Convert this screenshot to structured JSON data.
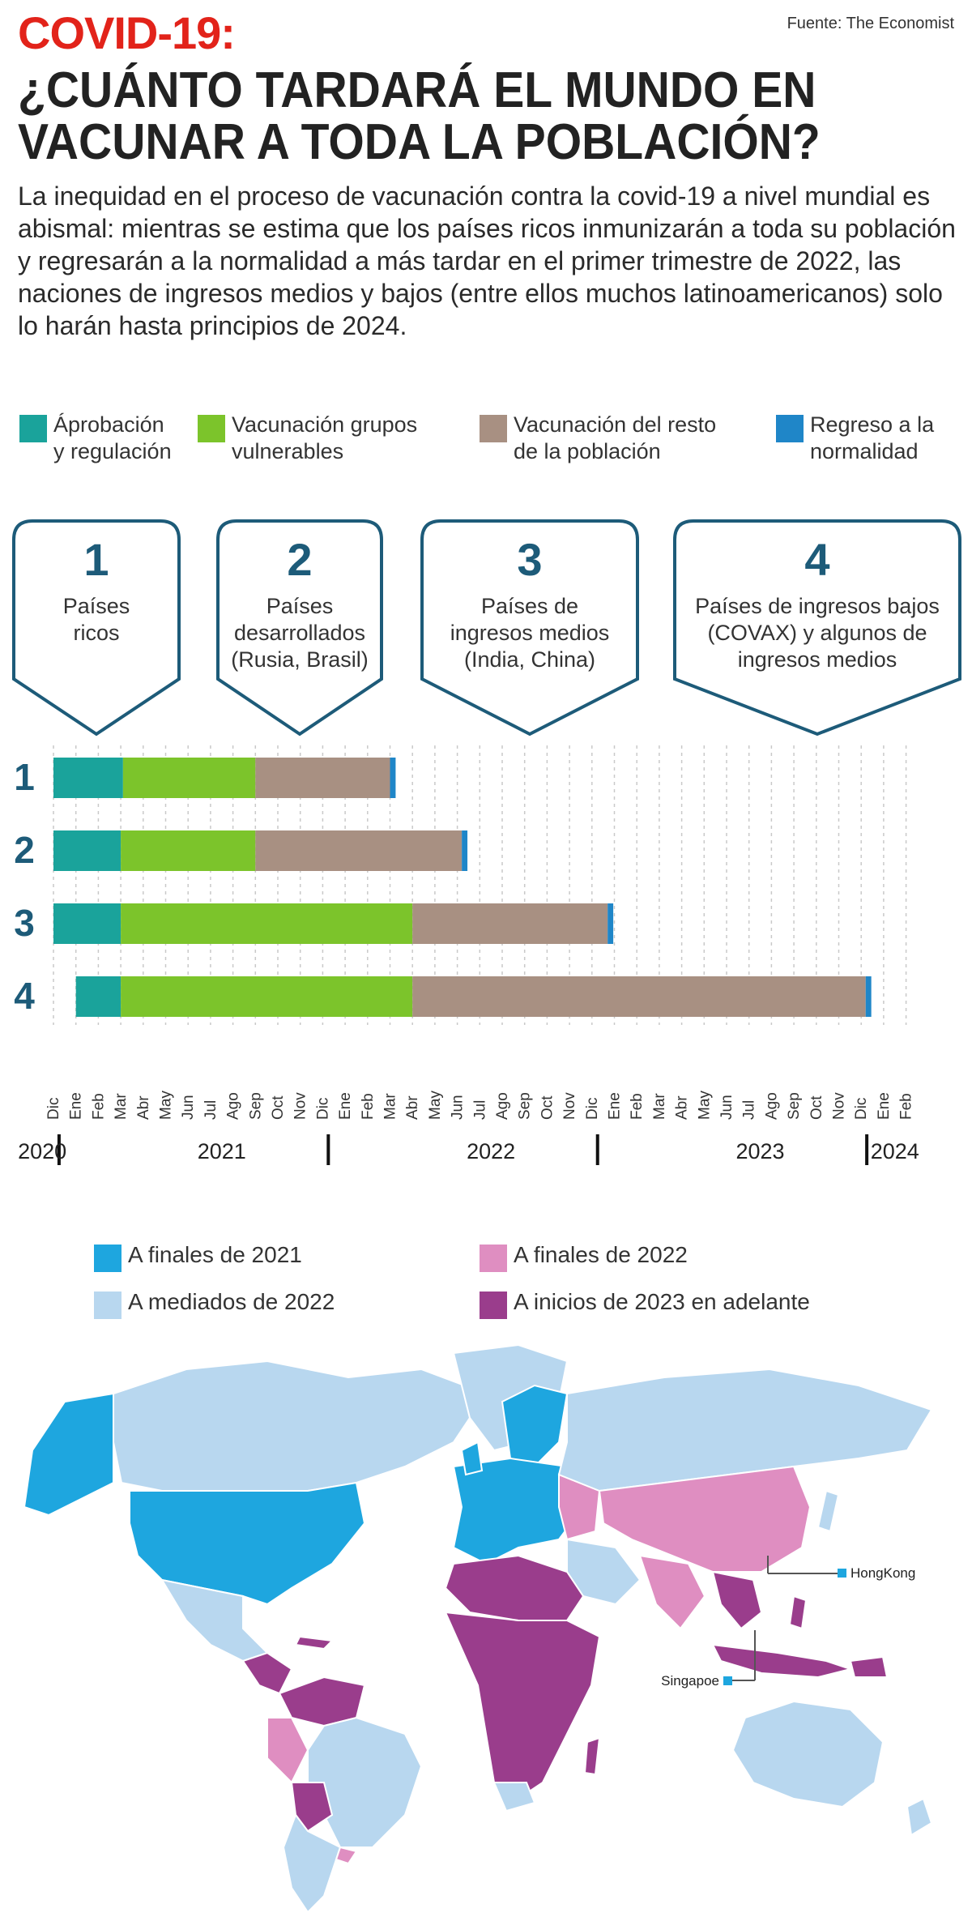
{
  "header": {
    "title_red": "COVID-19:",
    "title_main": "¿CUÁNTO TARDARÁ EL MUNDO EN VACUNAR A TODA LA POBLACIÓN?",
    "source": "Fuente: The Economist",
    "intro": "La inequidad en el proceso de vacunación contra la covid-19 a nivel mundial es abismal: mientras se estima que los países ricos inmunizarán a toda su población y regresarán a la normalidad a más tardar en el primer trimestre de 2022, las naciones de ingresos medios y bajos (entre ellos muchos latinoamericanos) solo lo harán hasta principios de 2024."
  },
  "phase_legend": [
    {
      "label": "Áprobación\ny regulación",
      "color": "#1aa39b"
    },
    {
      "label": "Vacunación grupos\nvulnerables",
      "color": "#7cc42b"
    },
    {
      "label": "Vacunación del resto\nde la población",
      "color": "#a89082"
    },
    {
      "label": "Regreso a la\nnormalidad",
      "color": "#1f86c8"
    }
  ],
  "groups": [
    {
      "number": "1",
      "label": "Países\nricos"
    },
    {
      "number": "2",
      "label": "Países\ndesarrollados\n(Rusia, Brasil)"
    },
    {
      "number": "3",
      "label": "Países de\ningresos medios\n(India, China)"
    },
    {
      "number": "4",
      "label": "Países de ingresos bajos\n(COVAX) y algunos de\ningresos medios"
    }
  ],
  "chart_data": {
    "type": "bar",
    "orientation": "horizontal-stacked-timeline",
    "categories": [
      "1",
      "2",
      "3",
      "4"
    ],
    "x_ticks": [
      "Dic",
      "Ene",
      "Feb",
      "Mar",
      "Abr",
      "May",
      "Jun",
      "Jul",
      "Ago",
      "Sep",
      "Oct",
      "Nov",
      "Dic",
      "Ene",
      "Feb",
      "Mar",
      "Abr",
      "May",
      "Jun",
      "Jul",
      "Ago",
      "Sep",
      "Oct",
      "Nov",
      "Dic",
      "Ene",
      "Feb",
      "Mar",
      "Abr",
      "May",
      "Jun",
      "Jul",
      "Ago",
      "Sep",
      "Oct",
      "Nov",
      "Dic",
      "Ene",
      "Feb"
    ],
    "year_labels": [
      {
        "label": "2020",
        "month_index": -0.5
      },
      {
        "label": "2021",
        "month_index": 7.5
      },
      {
        "label": "2022",
        "month_index": 19.5
      },
      {
        "label": "2023",
        "month_index": 31.5
      },
      {
        "label": "2024",
        "month_index": 37.5
      }
    ],
    "year_separators": [
      0.25,
      12.25,
      24.25,
      36.25
    ],
    "grid": true,
    "series": [
      {
        "name": "Áprobación y regulación",
        "color": "#1aa39b",
        "ranges": [
          [
            0,
            3.1
          ],
          [
            0,
            3.0
          ],
          [
            0,
            3.0
          ],
          [
            1.0,
            3.0
          ]
        ]
      },
      {
        "name": "Vacunación grupos vulnerables",
        "color": "#7cc42b",
        "ranges": [
          [
            3.1,
            9.0
          ],
          [
            3.0,
            9.0
          ],
          [
            3.0,
            16.0
          ],
          [
            3.0,
            16.0
          ]
        ]
      },
      {
        "name": "Vacunación del resto de la población",
        "color": "#a89082",
        "ranges": [
          [
            9.0,
            15.0
          ],
          [
            9.0,
            18.2
          ],
          [
            16.0,
            24.7
          ],
          [
            16.0,
            36.2
          ]
        ]
      },
      {
        "name": "Regreso a la normalidad",
        "color": "#1f86c8",
        "ranges": [
          [
            15.0,
            15.25
          ],
          [
            18.2,
            18.45
          ],
          [
            24.7,
            24.95
          ],
          [
            36.2,
            36.45
          ]
        ]
      }
    ]
  },
  "map_legend": [
    {
      "label": "A finales de 2021",
      "color": "#1ea6df"
    },
    {
      "label": "A finales de 2022",
      "color": "#df8ec1"
    },
    {
      "label": "A mediados de 2022",
      "color": "#b8d7ef"
    },
    {
      "label": "A inicios de 2023 en adelante",
      "color": "#9a3d8c"
    }
  ],
  "map": {
    "labels": {
      "hong_kong": "HongKong",
      "singapore": "Singapoe"
    },
    "colors": {
      "early": "#1ea6df",
      "mid": "#b8d7ef",
      "late": "#df8ec1",
      "latest": "#9a3d8c",
      "border": "#ffffff"
    }
  }
}
